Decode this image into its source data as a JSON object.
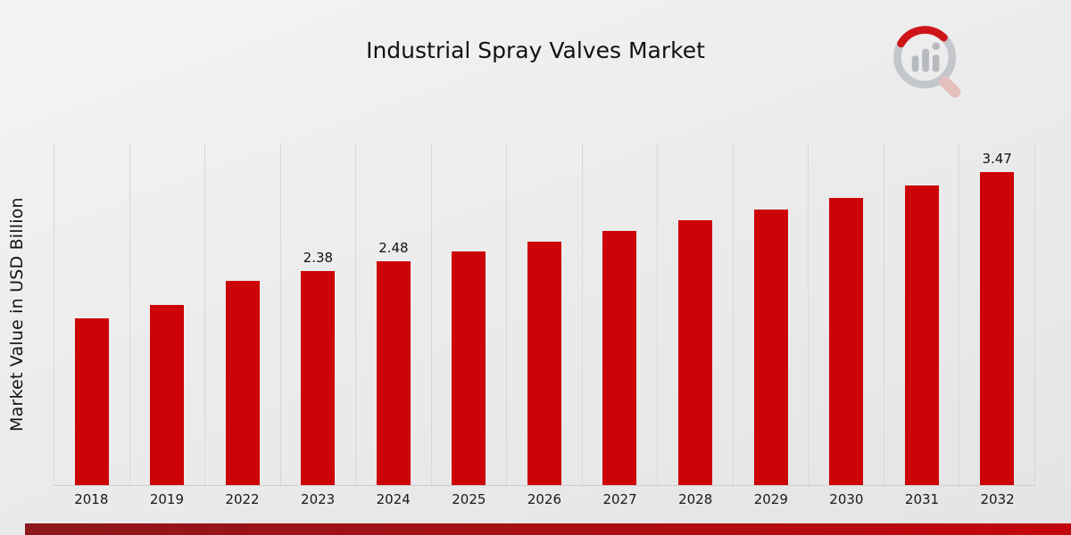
{
  "page": {
    "title": "Industrial Spray Valves Market",
    "ylabel": "Market Value in USD Billion"
  },
  "chart_data": {
    "type": "bar",
    "title": "Industrial Spray Valves Market",
    "xlabel": "",
    "ylabel": "Market Value in USD Billion",
    "categories": [
      "2018",
      "2019",
      "2022",
      "2023",
      "2024",
      "2025",
      "2026",
      "2027",
      "2028",
      "2029",
      "2030",
      "2031",
      "2032"
    ],
    "values": [
      1.85,
      2.0,
      2.27,
      2.38,
      2.48,
      2.59,
      2.7,
      2.82,
      2.94,
      3.06,
      3.19,
      3.33,
      3.47
    ],
    "data_labels": {
      "2023": "2.38",
      "2024": "2.48",
      "2032": "3.47"
    },
    "bar_color": "#cc0307",
    "ylim": [
      0,
      3.8
    ],
    "grid": "vertical-only",
    "legend": "none"
  },
  "branding": {
    "logo": "market-research-future-logo",
    "logo_ring_color": "#c3c6ca",
    "logo_accent_color": "#cf1418",
    "logo_handle_color": "#e6bfbf"
  },
  "footer": {
    "gradient_left": "#8e181c",
    "gradient_right": "#c4060c"
  }
}
